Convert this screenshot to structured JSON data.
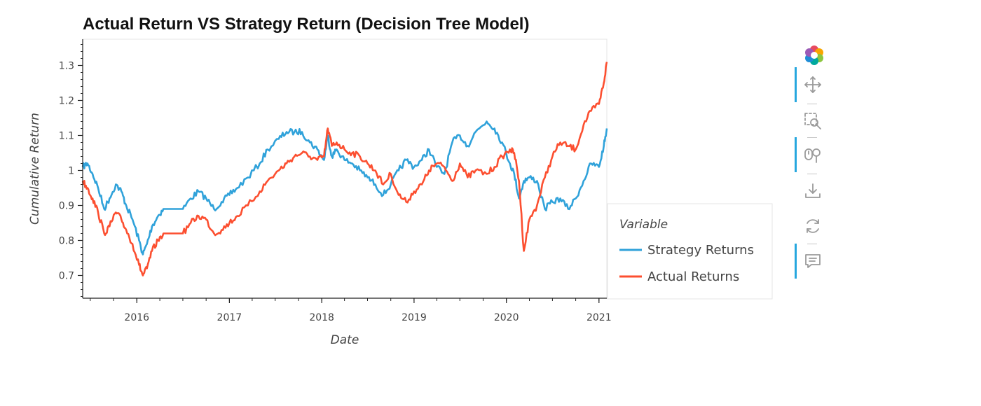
{
  "chart_data": {
    "type": "line",
    "title": "Actual Return VS Strategy Return (Decision Tree Model)",
    "xlabel": "Date",
    "ylabel": "Cumulative Return",
    "xlim": [
      "2015-06-01",
      "2021-02-01"
    ],
    "ylim": [
      0.635,
      1.375
    ],
    "x_ticks": [
      "2016",
      "2017",
      "2018",
      "2019",
      "2020",
      "2021"
    ],
    "y_ticks": [
      "0.7",
      "0.8",
      "0.9",
      "1",
      "1.1",
      "1.2",
      "1.3"
    ],
    "legend": {
      "title": "Variable",
      "position": "right"
    },
    "series": [
      {
        "name": "Strategy Returns",
        "color": "#30a2da",
        "points": [
          [
            "2015-06-01",
            1.01
          ],
          [
            "2015-06-20",
            1.02
          ],
          [
            "2015-07-10",
            0.99
          ],
          [
            "2015-08-01",
            0.95
          ],
          [
            "2015-08-25",
            0.89
          ],
          [
            "2015-09-15",
            0.92
          ],
          [
            "2015-10-10",
            0.96
          ],
          [
            "2015-11-01",
            0.94
          ],
          [
            "2015-11-20",
            0.9
          ],
          [
            "2015-12-15",
            0.86
          ],
          [
            "2016-01-10",
            0.8
          ],
          [
            "2016-01-25",
            0.76
          ],
          [
            "2016-02-10",
            0.79
          ],
          [
            "2016-03-01",
            0.84
          ],
          [
            "2016-03-25",
            0.87
          ],
          [
            "2016-04-15",
            0.89
          ],
          [
            "2016-07-01",
            0.89
          ],
          [
            "2016-08-01",
            0.92
          ],
          [
            "2016-09-01",
            0.94
          ],
          [
            "2016-10-01",
            0.92
          ],
          [
            "2016-11-01",
            0.89
          ],
          [
            "2016-12-01",
            0.91
          ],
          [
            "2017-01-01",
            0.93
          ],
          [
            "2017-02-01",
            0.95
          ],
          [
            "2017-03-15",
            0.98
          ],
          [
            "2017-05-01",
            1.02
          ],
          [
            "2017-06-01",
            1.06
          ],
          [
            "2017-07-15",
            1.09
          ],
          [
            "2017-08-15",
            1.11
          ],
          [
            "2017-09-15",
            1.11
          ],
          [
            "2017-10-15",
            1.11
          ],
          [
            "2017-11-15",
            1.08
          ],
          [
            "2017-12-15",
            1.06
          ],
          [
            "2018-01-10",
            1.03
          ],
          [
            "2018-01-25",
            1.1
          ],
          [
            "2018-02-10",
            1.04
          ],
          [
            "2018-03-01",
            1.06
          ],
          [
            "2018-04-01",
            1.03
          ],
          [
            "2018-05-01",
            1.02
          ],
          [
            "2018-06-01",
            1.0
          ],
          [
            "2018-07-01",
            0.98
          ],
          [
            "2018-08-01",
            0.96
          ],
          [
            "2018-09-01",
            0.93
          ],
          [
            "2018-10-01",
            0.96
          ],
          [
            "2018-11-01",
            1.0
          ],
          [
            "2018-12-01",
            1.03
          ],
          [
            "2019-01-01",
            1.01
          ],
          [
            "2019-02-01",
            1.03
          ],
          [
            "2019-03-01",
            1.06
          ],
          [
            "2019-04-01",
            1.01
          ],
          [
            "2019-05-01",
            0.99
          ],
          [
            "2019-06-01",
            1.08
          ],
          [
            "2019-07-01",
            1.1
          ],
          [
            "2019-08-01",
            1.07
          ],
          [
            "2019-09-01",
            1.11
          ],
          [
            "2019-10-15",
            1.14
          ],
          [
            "2019-11-15",
            1.12
          ],
          [
            "2019-12-15",
            1.08
          ],
          [
            "2020-01-15",
            1.02
          ],
          [
            "2020-02-01",
            0.99
          ],
          [
            "2020-02-20",
            0.92
          ],
          [
            "2020-03-10",
            0.97
          ],
          [
            "2020-04-01",
            0.98
          ],
          [
            "2020-05-01",
            0.97
          ],
          [
            "2020-06-01",
            0.89
          ],
          [
            "2020-07-01",
            0.91
          ],
          [
            "2020-08-01",
            0.92
          ],
          [
            "2020-09-01",
            0.89
          ],
          [
            "2020-10-01",
            0.92
          ],
          [
            "2020-11-01",
            0.97
          ],
          [
            "2020-12-01",
            1.02
          ],
          [
            "2021-01-01",
            1.01
          ],
          [
            "2021-01-20",
            1.07
          ],
          [
            "2021-02-01",
            1.12
          ]
        ]
      },
      {
        "name": "Actual Returns",
        "color": "#fc4f30",
        "points": [
          [
            "2015-06-01",
            0.97
          ],
          [
            "2015-06-20",
            0.95
          ],
          [
            "2015-07-10",
            0.92
          ],
          [
            "2015-08-01",
            0.88
          ],
          [
            "2015-08-25",
            0.82
          ],
          [
            "2015-09-15",
            0.84
          ],
          [
            "2015-10-10",
            0.88
          ],
          [
            "2015-11-01",
            0.86
          ],
          [
            "2015-11-20",
            0.83
          ],
          [
            "2015-12-15",
            0.79
          ],
          [
            "2016-01-10",
            0.73
          ],
          [
            "2016-01-25",
            0.7
          ],
          [
            "2016-02-10",
            0.72
          ],
          [
            "2016-03-01",
            0.77
          ],
          [
            "2016-03-25",
            0.8
          ],
          [
            "2016-04-15",
            0.82
          ],
          [
            "2016-07-01",
            0.82
          ],
          [
            "2016-08-01",
            0.85
          ],
          [
            "2016-09-01",
            0.87
          ],
          [
            "2016-10-01",
            0.86
          ],
          [
            "2016-11-01",
            0.82
          ],
          [
            "2016-12-01",
            0.83
          ],
          [
            "2017-01-01",
            0.85
          ],
          [
            "2017-02-01",
            0.87
          ],
          [
            "2017-03-15",
            0.9
          ],
          [
            "2017-05-01",
            0.94
          ],
          [
            "2017-06-01",
            0.97
          ],
          [
            "2017-07-15",
            1.0
          ],
          [
            "2017-08-15",
            1.02
          ],
          [
            "2017-09-15",
            1.04
          ],
          [
            "2017-10-15",
            1.05
          ],
          [
            "2017-11-15",
            1.04
          ],
          [
            "2017-12-15",
            1.03
          ],
          [
            "2018-01-10",
            1.04
          ],
          [
            "2018-01-25",
            1.12
          ],
          [
            "2018-02-10",
            1.07
          ],
          [
            "2018-03-01",
            1.08
          ],
          [
            "2018-04-01",
            1.06
          ],
          [
            "2018-05-01",
            1.05
          ],
          [
            "2018-06-01",
            1.04
          ],
          [
            "2018-07-01",
            1.02
          ],
          [
            "2018-08-01",
            1.0
          ],
          [
            "2018-09-01",
            0.96
          ],
          [
            "2018-10-01",
            0.99
          ],
          [
            "2018-11-01",
            0.93
          ],
          [
            "2018-12-01",
            0.91
          ],
          [
            "2019-01-01",
            0.94
          ],
          [
            "2019-02-01",
            0.96
          ],
          [
            "2019-03-01",
            1.0
          ],
          [
            "2019-04-01",
            1.02
          ],
          [
            "2019-05-01",
            1.01
          ],
          [
            "2019-06-01",
            0.97
          ],
          [
            "2019-07-01",
            1.02
          ],
          [
            "2019-08-01",
            0.98
          ],
          [
            "2019-09-01",
            1.0
          ],
          [
            "2019-10-15",
            0.99
          ],
          [
            "2019-11-15",
            1.01
          ],
          [
            "2019-12-15",
            1.04
          ],
          [
            "2020-01-15",
            1.06
          ],
          [
            "2020-02-01",
            1.05
          ],
          [
            "2020-02-20",
            0.97
          ],
          [
            "2020-03-10",
            0.77
          ],
          [
            "2020-04-01",
            0.86
          ],
          [
            "2020-05-01",
            0.9
          ],
          [
            "2020-06-01",
            0.98
          ],
          [
            "2020-07-01",
            1.04
          ],
          [
            "2020-08-01",
            1.08
          ],
          [
            "2020-09-01",
            1.07
          ],
          [
            "2020-10-01",
            1.06
          ],
          [
            "2020-11-01",
            1.13
          ],
          [
            "2020-12-01",
            1.17
          ],
          [
            "2021-01-01",
            1.19
          ],
          [
            "2021-01-20",
            1.25
          ],
          [
            "2021-02-01",
            1.31
          ]
        ]
      }
    ]
  },
  "toolbar": {
    "tools": [
      {
        "icon": "bokeh-logo-icon",
        "active": false
      },
      {
        "icon": "pan-icon",
        "active": true
      },
      {
        "icon": "box-zoom-icon",
        "active": false
      },
      {
        "icon": "wheel-zoom-icon",
        "active": true
      },
      {
        "icon": "save-icon",
        "active": false
      },
      {
        "icon": "reset-icon",
        "active": false
      },
      {
        "icon": "hover-icon",
        "active": true
      }
    ]
  }
}
